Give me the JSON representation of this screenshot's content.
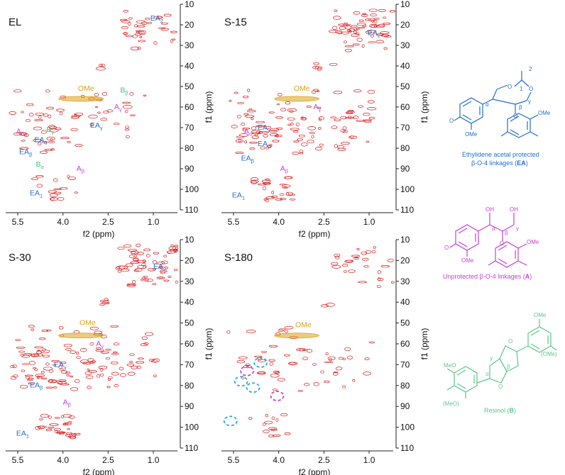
{
  "colors": {
    "EA": "#1f6fd1",
    "A": "#c83fd6",
    "B": "#3cc27d",
    "OMe": "#d9a21a",
    "contour": "#d81e1e",
    "dashed_cyan": "#27a9e0",
    "dashed_magenta": "#c83fd6"
  },
  "chart_data": [
    {
      "type": "heatmap",
      "panel": "EL",
      "title": "EL",
      "xlabel": "f2 (ppm)",
      "ylabel": "f1 (ppm)",
      "xlim": [
        5.9,
        0.2
      ],
      "ylim": [
        10,
        110
      ],
      "xticks": [
        "5.5",
        "4.0",
        "2.5",
        "1.0"
      ],
      "yticks": [
        "10",
        "20",
        "30",
        "40",
        "50",
        "60",
        "70",
        "80",
        "90",
        "100",
        "110"
      ],
      "annotations": [
        {
          "label": "EA",
          "sub": "2",
          "color": "EA",
          "x": 1.1,
          "y": 18
        },
        {
          "label": "OMe",
          "sub": "",
          "color": "OMe",
          "x": 3.5,
          "y": 52
        },
        {
          "label": "B",
          "sub": "β",
          "color": "B",
          "x": 2.1,
          "y": 53
        },
        {
          "label": "A",
          "sub": "γ",
          "color": "A",
          "x": 2.3,
          "y": 61
        },
        {
          "label": "A",
          "sub": "α",
          "color": "A",
          "x": 5.55,
          "y": 73
        },
        {
          "label": "B",
          "sub": "γ",
          "color": "B",
          "x": 4.55,
          "y": 72
        },
        {
          "label": "EA",
          "sub": "γ",
          "color": "EA",
          "x": 3.1,
          "y": 70
        },
        {
          "label": "EA",
          "sub": "α",
          "color": "EA",
          "x": 4.95,
          "y": 77
        },
        {
          "label": "EA",
          "sub": "β",
          "color": "EA",
          "x": 5.45,
          "y": 83
        },
        {
          "label": "B",
          "sub": "α",
          "color": "B",
          "x": 4.9,
          "y": 89
        },
        {
          "label": "A",
          "sub": "β",
          "color": "A",
          "x": 3.55,
          "y": 91
        },
        {
          "label": "EA",
          "sub": "1",
          "color": "EA",
          "x": 5.1,
          "y": 103
        }
      ]
    },
    {
      "type": "heatmap",
      "panel": "S-15",
      "title": "S-15",
      "xlabel": "f2 (ppm)",
      "ylabel": "f1 (ppm)",
      "xlim": [
        5.9,
        0.2
      ],
      "ylim": [
        10,
        110
      ],
      "xticks": [
        "5.5",
        "4.0",
        "2.5",
        "1.0"
      ],
      "yticks": [
        "10",
        "20",
        "30",
        "40",
        "50",
        "60",
        "70",
        "80",
        "90",
        "100",
        "110"
      ],
      "annotations": [
        {
          "label": "EA",
          "sub": "2",
          "color": "EA",
          "x": 1.05,
          "y": 25
        },
        {
          "label": "OMe",
          "sub": "",
          "color": "OMe",
          "x": 3.5,
          "y": 52
        },
        {
          "label": "A",
          "sub": "γ",
          "color": "A",
          "x": 2.85,
          "y": 61
        },
        {
          "label": "A",
          "sub": "α",
          "color": "A",
          "x": 5.15,
          "y": 73
        },
        {
          "label": "EA",
          "sub": "γ",
          "color": "EA",
          "x": 4.7,
          "y": 71
        },
        {
          "label": "EA",
          "sub": "α",
          "color": "EA",
          "x": 4.7,
          "y": 79
        },
        {
          "label": "EA",
          "sub": "β",
          "color": "EA",
          "x": 5.25,
          "y": 86
        },
        {
          "label": "A",
          "sub": "β",
          "color": "A",
          "x": 3.95,
          "y": 91
        },
        {
          "label": "EA",
          "sub": "1",
          "color": "EA",
          "x": 5.55,
          "y": 104
        }
      ]
    },
    {
      "type": "heatmap",
      "panel": "S-30",
      "title": "S-30",
      "xlabel": "f2 (ppm)",
      "ylabel": "f1 (ppm)",
      "xlim": [
        5.9,
        0.2
      ],
      "ylim": [
        10,
        110
      ],
      "xticks": [
        "5.5",
        "4.0",
        "2.5",
        "1.0"
      ],
      "yticks": [
        "10",
        "20",
        "30",
        "40",
        "50",
        "60",
        "70",
        "80",
        "90",
        "100",
        "110"
      ],
      "annotations": [
        {
          "label": "EA",
          "sub": "2",
          "color": "EA",
          "x": 1.0,
          "y": 24
        },
        {
          "label": "OMe",
          "sub": "",
          "color": "OMe",
          "x": 3.45,
          "y": 51
        },
        {
          "label": "A",
          "sub": "γ",
          "color": "A",
          "x": 2.9,
          "y": 61
        },
        {
          "label": "EA",
          "sub": "γ",
          "color": "EA",
          "x": 4.3,
          "y": 71
        },
        {
          "label": "EA",
          "sub": "β",
          "color": "EA",
          "x": 5.1,
          "y": 81
        },
        {
          "label": "A",
          "sub": "β",
          "color": "A",
          "x": 4.0,
          "y": 89
        },
        {
          "label": "EA",
          "sub": "1",
          "color": "EA",
          "x": 5.55,
          "y": 104
        }
      ]
    },
    {
      "type": "heatmap",
      "panel": "S-180",
      "title": "S-180",
      "xlabel": "f2 (ppm)",
      "ylabel": "f1 (ppm)",
      "xlim": [
        5.9,
        0.2
      ],
      "ylim": [
        10,
        110
      ],
      "xticks": [
        "5.5",
        "4.0",
        "2.5",
        "1.0"
      ],
      "yticks": [
        "10",
        "20",
        "30",
        "40",
        "50",
        "60",
        "70",
        "80",
        "90",
        "100",
        "110"
      ],
      "annotations": [
        {
          "label": "OMe",
          "sub": "",
          "color": "OMe",
          "x": 3.45,
          "y": 52
        }
      ]
    }
  ],
  "structures": {
    "EA": {
      "caption_line1": "Ethylidene acetal protected",
      "caption_line2_pre": "β-O-4 linkages (",
      "caption_bold": "EA",
      "caption_post": ")",
      "atoms": [
        "2",
        "O",
        "O",
        "1",
        "α",
        "β",
        "γ",
        "O",
        "OMe",
        "OMe",
        "O"
      ]
    },
    "A": {
      "caption_pre": "Unprotected β-O-4 linkages (",
      "caption_bold": "A",
      "caption_post": ")",
      "atoms": [
        "OH",
        "OH",
        "α",
        "β",
        "γ",
        "O",
        "O",
        "OMe",
        "OMe"
      ]
    },
    "B": {
      "caption_pre": "Resinol (",
      "caption_bold": "B",
      "caption_post": ")",
      "atoms": [
        "OMe",
        "MeO",
        "(OMe)",
        "(MeO)",
        "O",
        "O",
        "γ",
        "β",
        "α"
      ]
    }
  }
}
